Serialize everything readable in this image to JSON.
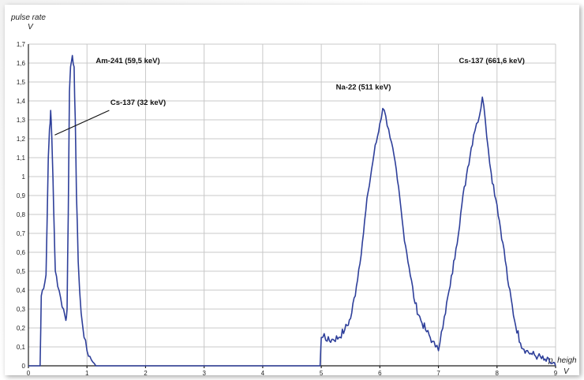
{
  "chart_data": {
    "type": "line",
    "ylabel": "pulse rate",
    "yunit": "V",
    "xlabel": "p. heigh",
    "xunit": "V",
    "xlim": [
      0,
      9
    ],
    "ylim": [
      0,
      1.7
    ],
    "grid": true,
    "xticks": [
      "0",
      "1",
      "2",
      "3",
      "4",
      "5",
      "6",
      "7",
      "8",
      "9"
    ],
    "yticks": [
      "0",
      "0,1",
      "0,2",
      "0,3",
      "0,4",
      "0,5",
      "0,6",
      "0,7",
      "0,8",
      "0,9",
      "1",
      "1,1",
      "1,2",
      "1,3",
      "1,4",
      "1,5",
      "1,6",
      "1,7"
    ],
    "series": [
      {
        "color": "#2e3f9a",
        "x": [
          0.0,
          0.2,
          0.22,
          0.3,
          0.34,
          0.36,
          0.38,
          0.4,
          0.42,
          0.44,
          0.46,
          0.5,
          0.55,
          0.6,
          0.64,
          0.66,
          0.68,
          0.7,
          0.72,
          0.75,
          0.78,
          0.8,
          0.82,
          0.85,
          0.9,
          0.95,
          1.0,
          1.05,
          1.1,
          1.15,
          1.2,
          1.5,
          2.0,
          3.0,
          4.0,
          4.98,
          5.0,
          5.05,
          5.1,
          5.2,
          5.3,
          5.4,
          5.5,
          5.6,
          5.7,
          5.8,
          5.9,
          6.0,
          6.05,
          6.1,
          6.15,
          6.2,
          6.3,
          6.4,
          6.5,
          6.6,
          6.7,
          6.8,
          6.9,
          6.95,
          7.0,
          7.05,
          7.1,
          7.2,
          7.3,
          7.4,
          7.5,
          7.6,
          7.65,
          7.7,
          7.75,
          7.8,
          7.85,
          7.9,
          8.0,
          8.1,
          8.2,
          8.3,
          8.4,
          8.5,
          8.6,
          8.7,
          8.8,
          8.9,
          9.0
        ],
        "y": [
          0.0,
          0.0,
          0.37,
          0.48,
          1.1,
          1.25,
          1.35,
          1.2,
          0.98,
          0.72,
          0.5,
          0.42,
          0.36,
          0.3,
          0.24,
          0.3,
          0.8,
          1.45,
          1.58,
          1.64,
          1.58,
          1.3,
          0.9,
          0.55,
          0.28,
          0.15,
          0.08,
          0.05,
          0.02,
          0.0,
          0.0,
          0.0,
          0.0,
          0.0,
          0.0,
          0.0,
          0.15,
          0.17,
          0.13,
          0.14,
          0.15,
          0.19,
          0.25,
          0.42,
          0.65,
          0.92,
          1.12,
          1.28,
          1.36,
          1.32,
          1.25,
          1.18,
          0.98,
          0.72,
          0.52,
          0.33,
          0.24,
          0.18,
          0.13,
          0.1,
          0.08,
          0.18,
          0.26,
          0.42,
          0.62,
          0.85,
          1.05,
          1.22,
          1.28,
          1.32,
          1.42,
          1.3,
          1.15,
          1.02,
          0.85,
          0.65,
          0.42,
          0.24,
          0.12,
          0.08,
          0.06,
          0.05,
          0.03,
          0.02,
          0.0
        ]
      }
    ],
    "annotations": [
      {
        "text": "Am-241 (59,5 keV)",
        "x": 1.15,
        "y": 1.6
      },
      {
        "text": "Cs-137 (32 keV)",
        "x": 1.4,
        "y": 1.38
      },
      {
        "text": "Na-22 (511 keV)",
        "x": 5.25,
        "y": 1.46
      },
      {
        "text": "Cs-137 (661,6 keV)",
        "x": 7.35,
        "y": 1.6
      }
    ],
    "leader": {
      "from": [
        1.38,
        1.35
      ],
      "to": [
        0.45,
        1.22
      ]
    }
  }
}
